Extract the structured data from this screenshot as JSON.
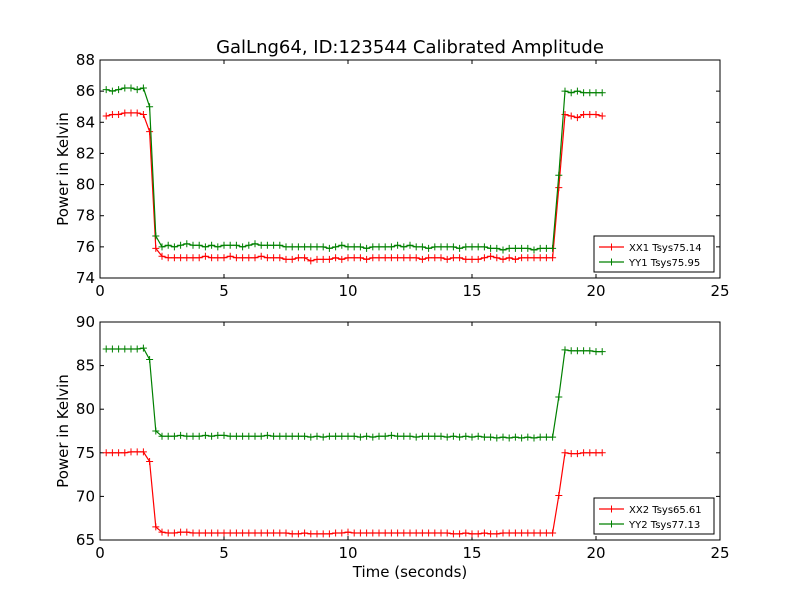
{
  "title": "GalLng64, ID:123544 Calibrated Amplitude",
  "colors": {
    "xx": "#ff0000",
    "yy": "#008000"
  },
  "chart_data": [
    {
      "type": "line",
      "title": "GalLng64, ID:123544 Calibrated Amplitude",
      "xlabel": "",
      "ylabel": "Power in Kelvin",
      "xlim": [
        0,
        25
      ],
      "ylim": [
        74,
        88
      ],
      "xticks": [
        0,
        5,
        10,
        15,
        20,
        25
      ],
      "yticks": [
        74,
        76,
        78,
        80,
        82,
        84,
        86,
        88
      ],
      "grid": false,
      "legend_position": "lower right",
      "series": [
        {
          "name": "XX1 Tsys75.14",
          "color": "#ff0000",
          "x": [
            0.25,
            0.5,
            0.75,
            1,
            1.25,
            1.5,
            1.75,
            2,
            2.25,
            2.5,
            2.75,
            3,
            3.25,
            3.5,
            3.75,
            4,
            4.25,
            4.5,
            4.75,
            5,
            5.25,
            5.5,
            5.75,
            6,
            6.25,
            6.5,
            6.75,
            7,
            7.25,
            7.5,
            7.75,
            8,
            8.25,
            8.5,
            8.75,
            9,
            9.25,
            9.5,
            9.75,
            10,
            10.25,
            10.5,
            10.75,
            11,
            11.25,
            11.5,
            11.75,
            12,
            12.25,
            12.5,
            12.75,
            13,
            13.25,
            13.5,
            13.75,
            14,
            14.25,
            14.5,
            14.75,
            15,
            15.25,
            15.5,
            15.75,
            16,
            16.25,
            16.5,
            16.75,
            17,
            17.25,
            17.5,
            17.75,
            18,
            18.25,
            18.5,
            18.75,
            19,
            19.25,
            19.5,
            19.75,
            20,
            20.25
          ],
          "y": [
            84.4,
            84.5,
            84.5,
            84.6,
            84.6,
            84.6,
            84.5,
            83.4,
            75.9,
            75.4,
            75.3,
            75.3,
            75.3,
            75.3,
            75.3,
            75.3,
            75.4,
            75.3,
            75.3,
            75.3,
            75.4,
            75.3,
            75.3,
            75.3,
            75.3,
            75.4,
            75.3,
            75.3,
            75.3,
            75.2,
            75.2,
            75.3,
            75.3,
            75.1,
            75.2,
            75.2,
            75.2,
            75.3,
            75.2,
            75.3,
            75.3,
            75.3,
            75.2,
            75.3,
            75.3,
            75.3,
            75.3,
            75.3,
            75.3,
            75.3,
            75.3,
            75.2,
            75.3,
            75.3,
            75.3,
            75.2,
            75.3,
            75.3,
            75.2,
            75.2,
            75.2,
            75.3,
            75.4,
            75.3,
            75.2,
            75.3,
            75.2,
            75.3,
            75.3,
            75.3,
            75.3,
            75.3,
            75.3,
            79.8,
            84.5,
            84.4,
            84.3,
            84.5,
            84.5,
            84.5,
            84.4
          ]
        },
        {
          "name": "YY1 Tsys75.95",
          "color": "#008000",
          "x": [
            0.25,
            0.5,
            0.75,
            1,
            1.25,
            1.5,
            1.75,
            2,
            2.25,
            2.5,
            2.75,
            3,
            3.25,
            3.5,
            3.75,
            4,
            4.25,
            4.5,
            4.75,
            5,
            5.25,
            5.5,
            5.75,
            6,
            6.25,
            6.5,
            6.75,
            7,
            7.25,
            7.5,
            7.75,
            8,
            8.25,
            8.5,
            8.75,
            9,
            9.25,
            9.5,
            9.75,
            10,
            10.25,
            10.5,
            10.75,
            11,
            11.25,
            11.5,
            11.75,
            12,
            12.25,
            12.5,
            12.75,
            13,
            13.25,
            13.5,
            13.75,
            14,
            14.25,
            14.5,
            14.75,
            15,
            15.25,
            15.5,
            15.75,
            16,
            16.25,
            16.5,
            16.75,
            17,
            17.25,
            17.5,
            17.75,
            18,
            18.25,
            18.5,
            18.75,
            19,
            19.25,
            19.5,
            19.75,
            20,
            20.25
          ],
          "y": [
            86.1,
            86.0,
            86.1,
            86.2,
            86.2,
            86.1,
            86.2,
            85.0,
            76.7,
            76.0,
            76.1,
            76.0,
            76.1,
            76.2,
            76.1,
            76.1,
            76.0,
            76.1,
            76.0,
            76.1,
            76.1,
            76.1,
            76.0,
            76.1,
            76.2,
            76.1,
            76.1,
            76.1,
            76.1,
            76.0,
            76.0,
            76.0,
            76.0,
            76.0,
            76.0,
            76.0,
            75.9,
            76.0,
            76.1,
            76.0,
            76.0,
            76.0,
            75.9,
            76.0,
            76.0,
            76.0,
            76.0,
            76.1,
            76.0,
            76.1,
            76.0,
            76.0,
            75.9,
            76.0,
            76.0,
            76.0,
            76.0,
            75.9,
            76.0,
            76.0,
            76.0,
            76.0,
            75.9,
            75.9,
            75.8,
            75.9,
            75.9,
            75.9,
            75.9,
            75.8,
            75.9,
            75.9,
            75.9,
            80.6,
            86.0,
            85.9,
            86.0,
            85.9,
            85.9,
            85.9,
            85.9
          ]
        }
      ]
    },
    {
      "type": "line",
      "title": "",
      "xlabel": "Time (seconds)",
      "ylabel": "Power in Kelvin",
      "xlim": [
        0,
        25
      ],
      "ylim": [
        65,
        90
      ],
      "xticks": [
        0,
        5,
        10,
        15,
        20,
        25
      ],
      "yticks": [
        65,
        70,
        75,
        80,
        85,
        90
      ],
      "grid": false,
      "legend_position": "lower right",
      "series": [
        {
          "name": "XX2 Tsys65.61",
          "color": "#ff0000",
          "x": [
            0.25,
            0.5,
            0.75,
            1,
            1.25,
            1.5,
            1.75,
            2,
            2.25,
            2.5,
            2.75,
            3,
            3.25,
            3.5,
            3.75,
            4,
            4.25,
            4.5,
            4.75,
            5,
            5.25,
            5.5,
            5.75,
            6,
            6.25,
            6.5,
            6.75,
            7,
            7.25,
            7.5,
            7.75,
            8,
            8.25,
            8.5,
            8.75,
            9,
            9.25,
            9.5,
            9.75,
            10,
            10.25,
            10.5,
            10.75,
            11,
            11.25,
            11.5,
            11.75,
            12,
            12.25,
            12.5,
            12.75,
            13,
            13.25,
            13.5,
            13.75,
            14,
            14.25,
            14.5,
            14.75,
            15,
            15.25,
            15.5,
            15.75,
            16,
            16.25,
            16.5,
            16.75,
            17,
            17.25,
            17.5,
            17.75,
            18,
            18.25,
            18.5,
            18.75,
            19,
            19.25,
            19.5,
            19.75,
            20,
            20.25
          ],
          "y": [
            75.0,
            75.0,
            75.0,
            75.0,
            75.1,
            75.1,
            75.1,
            74.0,
            66.5,
            65.9,
            65.8,
            65.8,
            65.9,
            65.9,
            65.8,
            65.8,
            65.8,
            65.8,
            65.8,
            65.8,
            65.8,
            65.8,
            65.8,
            65.8,
            65.8,
            65.8,
            65.8,
            65.8,
            65.8,
            65.8,
            65.7,
            65.7,
            65.8,
            65.7,
            65.7,
            65.7,
            65.7,
            65.8,
            65.8,
            65.9,
            65.8,
            65.8,
            65.8,
            65.8,
            65.8,
            65.8,
            65.8,
            65.8,
            65.8,
            65.8,
            65.8,
            65.8,
            65.8,
            65.8,
            65.8,
            65.8,
            65.7,
            65.7,
            65.8,
            65.7,
            65.7,
            65.8,
            65.7,
            65.7,
            65.8,
            65.8,
            65.8,
            65.8,
            65.8,
            65.8,
            65.8,
            65.8,
            65.8,
            70.1,
            75.0,
            74.9,
            74.9,
            75.0,
            75.0,
            75.0,
            75.0
          ]
        },
        {
          "name": "YY2 Tsys77.13",
          "color": "#008000",
          "x": [
            0.25,
            0.5,
            0.75,
            1,
            1.25,
            1.5,
            1.75,
            2,
            2.25,
            2.5,
            2.75,
            3,
            3.25,
            3.5,
            3.75,
            4,
            4.25,
            4.5,
            4.75,
            5,
            5.25,
            5.5,
            5.75,
            6,
            6.25,
            6.5,
            6.75,
            7,
            7.25,
            7.5,
            7.75,
            8,
            8.25,
            8.5,
            8.75,
            9,
            9.25,
            9.5,
            9.75,
            10,
            10.25,
            10.5,
            10.75,
            11,
            11.25,
            11.5,
            11.75,
            12,
            12.25,
            12.5,
            12.75,
            13,
            13.25,
            13.5,
            13.75,
            14,
            14.25,
            14.5,
            14.75,
            15,
            15.25,
            15.5,
            15.75,
            16,
            16.25,
            16.5,
            16.75,
            17,
            17.25,
            17.5,
            17.75,
            18,
            18.25,
            18.5,
            18.75,
            19,
            19.25,
            19.5,
            19.75,
            20,
            20.25
          ],
          "y": [
            86.9,
            86.9,
            86.9,
            86.9,
            86.9,
            86.9,
            87.0,
            85.7,
            77.5,
            76.9,
            76.9,
            76.9,
            77.0,
            76.9,
            76.9,
            76.9,
            77.0,
            76.9,
            77.0,
            77.0,
            76.9,
            76.9,
            76.9,
            76.9,
            76.9,
            76.9,
            77.0,
            76.9,
            76.9,
            76.9,
            76.9,
            76.9,
            76.9,
            76.8,
            76.9,
            76.8,
            76.9,
            76.9,
            76.9,
            76.9,
            76.9,
            76.8,
            76.9,
            76.8,
            76.9,
            76.9,
            77.0,
            76.9,
            76.9,
            76.9,
            76.8,
            76.9,
            76.9,
            76.9,
            76.9,
            76.8,
            76.9,
            76.8,
            76.9,
            76.8,
            76.9,
            76.8,
            76.8,
            76.7,
            76.8,
            76.7,
            76.8,
            76.7,
            76.8,
            76.7,
            76.8,
            76.8,
            76.8,
            81.4,
            86.8,
            86.7,
            86.7,
            86.7,
            86.7,
            86.6,
            86.6
          ]
        }
      ]
    }
  ]
}
